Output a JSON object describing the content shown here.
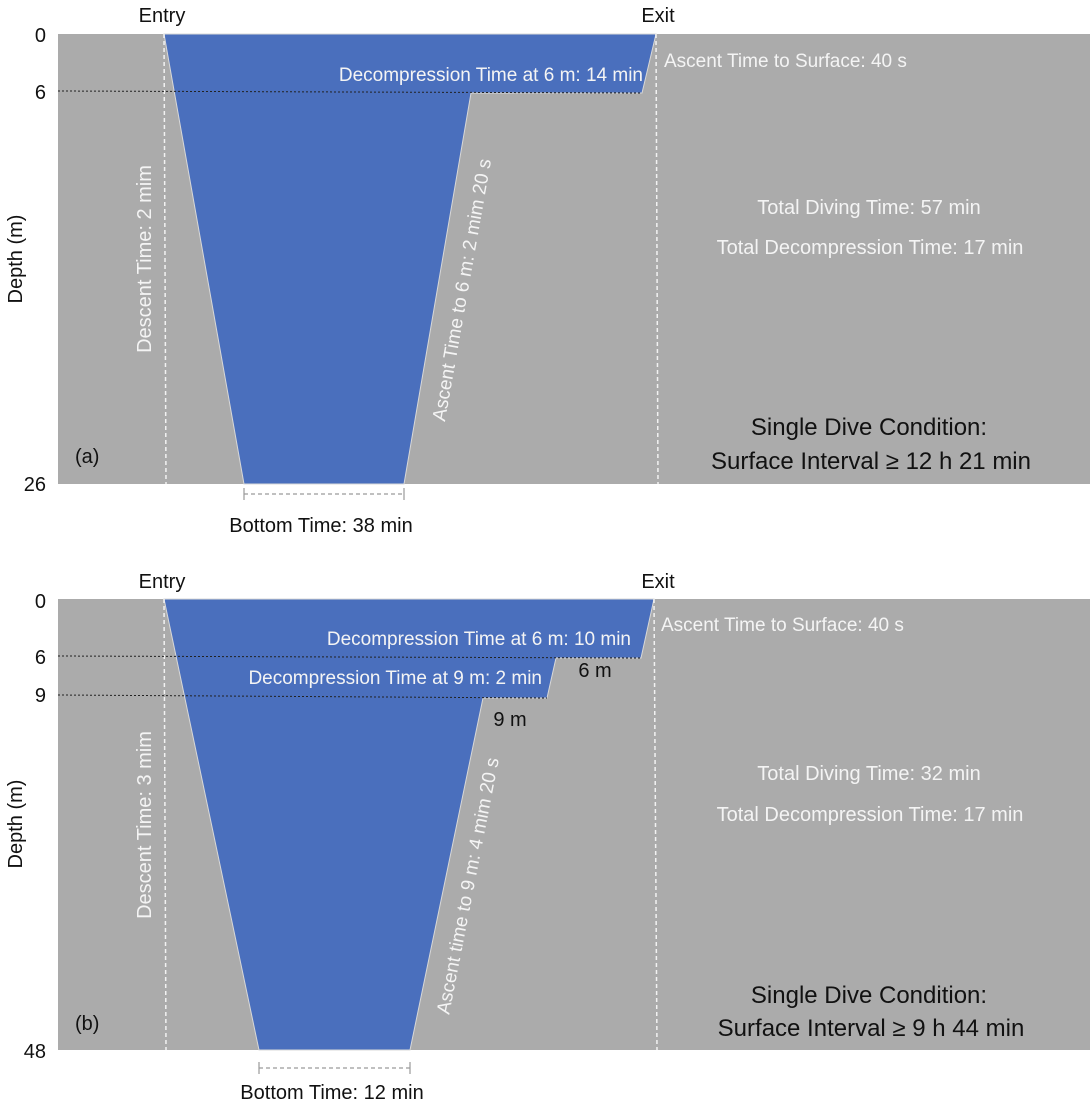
{
  "panels": [
    {
      "id": "a",
      "panel_label": "(a)",
      "entry_label": "Entry",
      "exit_label": "Exit",
      "axis_label": "Depth (m)",
      "depth_ticks": [
        "0",
        "6",
        "26"
      ],
      "descent_label": "Descent Time: 2 mim",
      "ascent_label": "Ascent Time to 6 m: 2 mim 20 s",
      "deco_labels": [
        "Decompression Time at 6 m: 14 min"
      ],
      "stop_depth_labels": [],
      "surface_ascent_label": "Ascent Time to Surface: 40 s",
      "total_diving_time": "Total Diving Time: 57 min",
      "total_decompression_time": "Total Decompression Time: 17 min",
      "condition_title": "Single Dive Condition:",
      "surface_interval": "Surface Interval ≥ 12 h 21 min",
      "bottom_time": "Bottom Time: 38 min"
    },
    {
      "id": "b",
      "panel_label": "(b)",
      "entry_label": "Entry",
      "exit_label": "Exit",
      "axis_label": "Depth (m)",
      "depth_ticks": [
        "0",
        "6",
        "9",
        "48"
      ],
      "descent_label": "Descent Time: 3 mim",
      "ascent_label": "Ascent time to 9 m: 4 mim 20 s",
      "deco_labels": [
        "Decompression Time at 6 m: 10 min",
        "Decompression Time at 9 m: 2 min"
      ],
      "stop_depth_labels": [
        "6 m",
        "9 m"
      ],
      "surface_ascent_label": "Ascent Time to Surface: 40 s",
      "total_diving_time": "Total Diving Time: 32 min",
      "total_decompression_time": "Total Decompression Time: 17 min",
      "condition_title": "Single Dive Condition:",
      "surface_interval": "Surface Interval ≥ 9 h 44 min",
      "bottom_time": "Bottom Time: 12 min"
    }
  ],
  "colors": {
    "background": "#ababab",
    "profile_fill": "#4a6fbd",
    "guide_line": "#f2f2f2",
    "text_dark": "#111111",
    "text_light": "#f4f4f4"
  }
}
